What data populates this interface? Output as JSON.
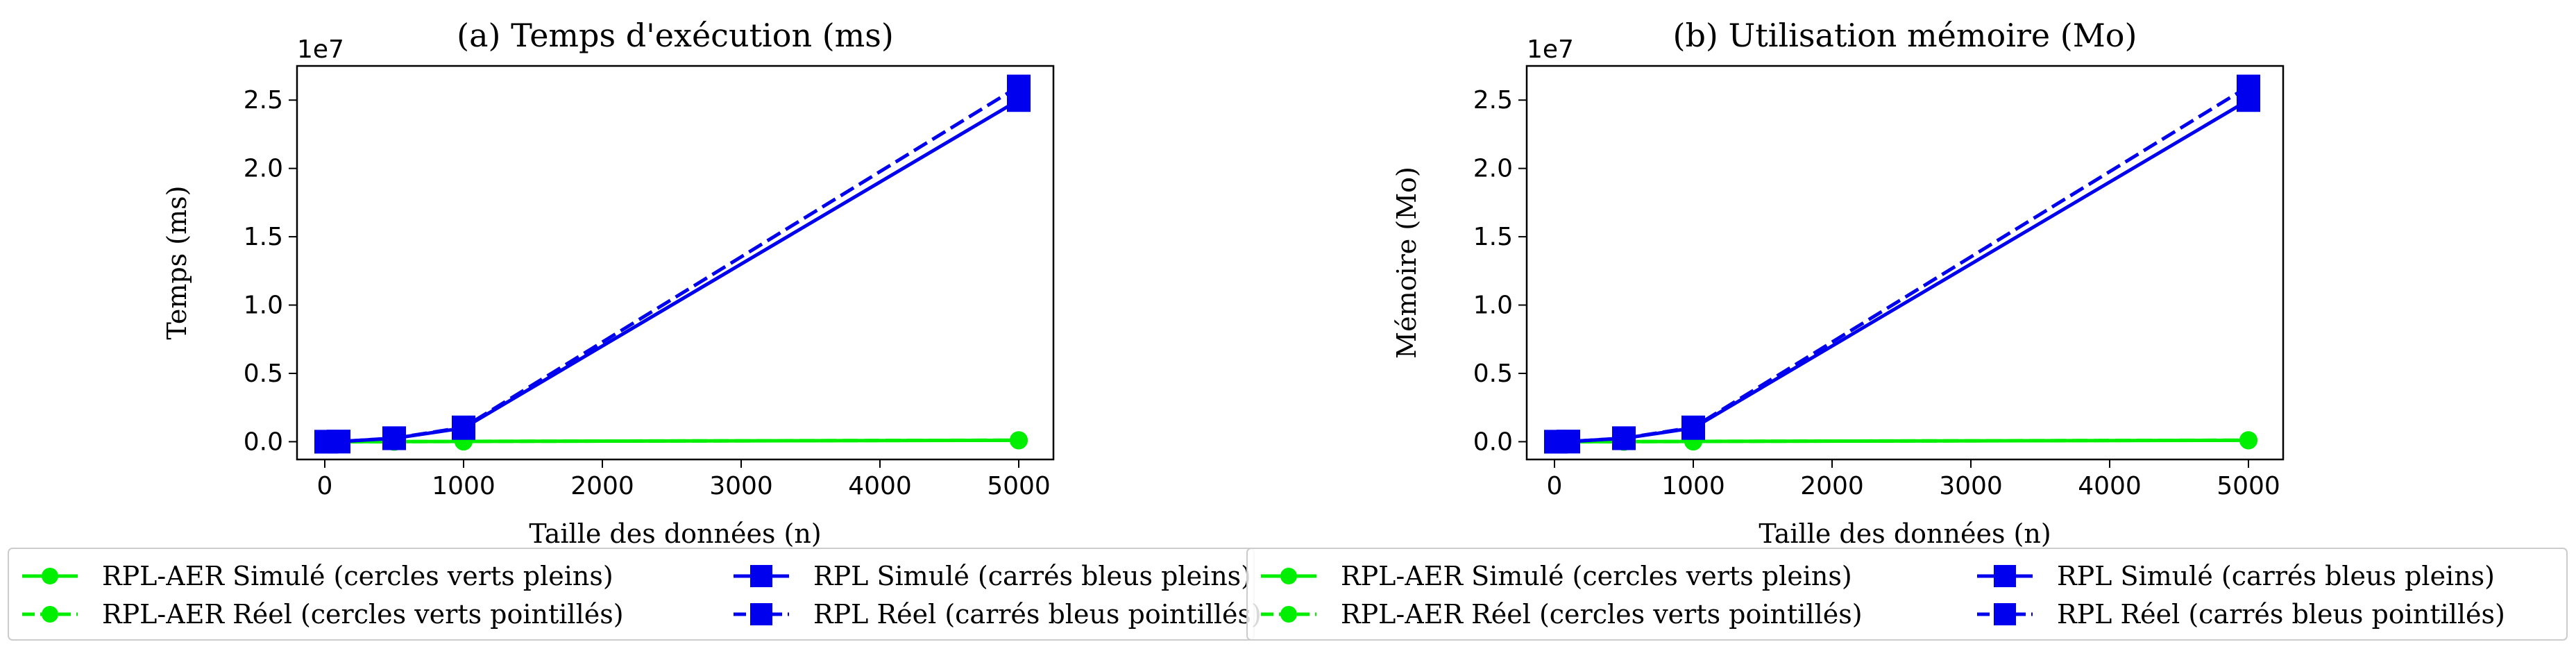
{
  "chart_data": [
    {
      "type": "line",
      "title": "(a) Temps d'exécution (ms)",
      "xlabel": "Taille des données (n)",
      "ylabel": "Temps (ms)",
      "y_scale_label": "1e7",
      "xlim": [
        -200,
        5250
      ],
      "ylim": [
        -1300000,
        27500000
      ],
      "x_ticks": [
        0,
        1000,
        2000,
        3000,
        4000,
        5000
      ],
      "x_tick_labels": [
        "0",
        "1000",
        "2000",
        "3000",
        "4000",
        "5000"
      ],
      "y_ticks": [
        0,
        5000000,
        10000000,
        15000000,
        20000000,
        25000000
      ],
      "y_tick_labels": [
        "0.0",
        "0.5",
        "1.0",
        "1.5",
        "2.0",
        "2.5"
      ],
      "grid": false,
      "legend_position": "below",
      "series": [
        {
          "name": "RPL-AER Simulé (cercles verts pleins)",
          "color": "#00ee00",
          "linestyle": "solid",
          "marker": "circle",
          "x": [
            10,
            100,
            500,
            1000,
            5000
          ],
          "y": [
            0,
            0,
            5000,
            20000,
            100000
          ]
        },
        {
          "name": "RPL-AER Réel (cercles verts pointillés)",
          "color": "#00ee00",
          "linestyle": "dashed",
          "marker": "circle",
          "x": [
            10,
            100,
            500,
            1000,
            5000
          ],
          "y": [
            0,
            0,
            5500,
            22000,
            110000
          ]
        },
        {
          "name": "RPL Simulé (carrés bleus pleins)",
          "color": "#0000ee",
          "linestyle": "solid",
          "marker": "square",
          "x": [
            10,
            100,
            500,
            1000,
            5000
          ],
          "y": [
            100,
            10000,
            250000,
            1000000,
            25000000
          ]
        },
        {
          "name": "RPL Réel (carrés bleus pointillés)",
          "color": "#0000ee",
          "linestyle": "dashed",
          "marker": "square",
          "x": [
            10,
            100,
            500,
            1000,
            5000
          ],
          "y": [
            110,
            11000,
            260000,
            1050000,
            26000000
          ]
        }
      ]
    },
    {
      "type": "line",
      "title": "(b) Utilisation mémoire (Mo)",
      "xlabel": "Taille des données (n)",
      "ylabel": "Mémoire (Mo)",
      "y_scale_label": "1e7",
      "xlim": [
        -200,
        5250
      ],
      "ylim": [
        -1300000,
        27500000
      ],
      "x_ticks": [
        0,
        1000,
        2000,
        3000,
        4000,
        5000
      ],
      "x_tick_labels": [
        "0",
        "1000",
        "2000",
        "3000",
        "4000",
        "5000"
      ],
      "y_ticks": [
        0,
        5000000,
        10000000,
        15000000,
        20000000,
        25000000
      ],
      "y_tick_labels": [
        "0.0",
        "0.5",
        "1.0",
        "1.5",
        "2.0",
        "2.5"
      ],
      "grid": false,
      "legend_position": "below",
      "series": [
        {
          "name": "RPL-AER Simulé (cercles verts pleins)",
          "color": "#00ee00",
          "linestyle": "solid",
          "marker": "circle",
          "x": [
            10,
            100,
            500,
            1000,
            5000
          ],
          "y": [
            0,
            0,
            5000,
            20000,
            100000
          ]
        },
        {
          "name": "RPL-AER Réel (cercles verts pointillés)",
          "color": "#00ee00",
          "linestyle": "dashed",
          "marker": "circle",
          "x": [
            10,
            100,
            500,
            1000,
            5000
          ],
          "y": [
            0,
            0,
            5500,
            22000,
            110000
          ]
        },
        {
          "name": "RPL Simulé (carrés bleus pleins)",
          "color": "#0000ee",
          "linestyle": "solid",
          "marker": "square",
          "x": [
            10,
            100,
            500,
            1000,
            5000
          ],
          "y": [
            100,
            10000,
            250000,
            1000000,
            25000000
          ]
        },
        {
          "name": "RPL Réel (carrés bleus pointillés)",
          "color": "#0000ee",
          "linestyle": "dashed",
          "marker": "square",
          "x": [
            10,
            100,
            500,
            1000,
            5000
          ],
          "y": [
            110,
            11000,
            260000,
            1050000,
            26000000
          ]
        }
      ]
    }
  ]
}
